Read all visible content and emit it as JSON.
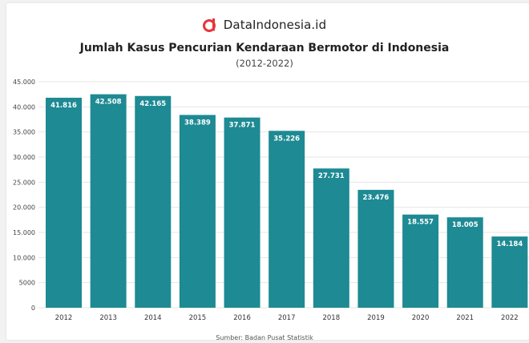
{
  "brand": {
    "name": "DataIndonesia.id",
    "logo_icon": "dataindonesia-logo-icon",
    "logo_color": "#e8343c"
  },
  "header": {
    "title": "Jumlah Kasus Pencurian Kendaraan Bermotor di Indonesia",
    "subtitle": "(2012-2022)"
  },
  "footer": {
    "source": "Sumber: Badan Pusat Statistik"
  },
  "colors": {
    "bar": "#1e8a93",
    "grid": "#e6e6e6",
    "label": "#ffffff"
  },
  "chart_data": {
    "type": "bar",
    "title": "Jumlah Kasus Pencurian Kendaraan Bermotor di Indonesia",
    "subtitle": "(2012-2022)",
    "xlabel": "",
    "ylabel": "",
    "categories": [
      "2012",
      "2013",
      "2014",
      "2015",
      "2016",
      "2017",
      "2018",
      "2019",
      "2020",
      "2021",
      "2022"
    ],
    "values": [
      41816,
      42508,
      42165,
      38389,
      37871,
      35226,
      27731,
      23476,
      18557,
      18005,
      14184
    ],
    "value_labels": [
      "41.816",
      "42.508",
      "42.165",
      "38.389",
      "37.871",
      "35.226",
      "27.731",
      "23.476",
      "18.557",
      "18.005",
      "14.184"
    ],
    "ylim": [
      0,
      45000
    ],
    "yticks": [
      0,
      5000,
      10000,
      15000,
      20000,
      25000,
      30000,
      35000,
      40000,
      45000
    ],
    "ytick_labels": [
      "0",
      "5000",
      "10.000",
      "15.000",
      "20.000",
      "25.000",
      "30.000",
      "35.000",
      "40.000",
      "45.000"
    ],
    "grid": true,
    "legend": "none"
  }
}
